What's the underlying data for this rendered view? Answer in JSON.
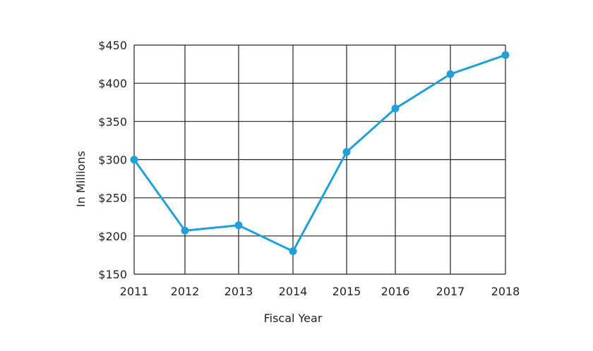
{
  "chart_data": {
    "type": "line",
    "title": "",
    "xlabel": "Fiscal Year",
    "ylabel": "In Millions",
    "x": [
      "2011",
      "2012",
      "2013",
      "2014",
      "2015",
      "2016",
      "2017",
      "2018"
    ],
    "series": [
      {
        "values": [
          300,
          207,
          214,
          180,
          310,
          367,
          412,
          437
        ],
        "color": "#1fa0d8"
      }
    ],
    "ylim": [
      150,
      450
    ],
    "yticks": [
      150,
      200,
      250,
      300,
      350,
      400,
      450
    ],
    "ytick_labels": [
      "$150",
      "$200",
      "$250",
      "$300",
      "$350",
      "$400",
      "$450"
    ],
    "grid": true,
    "legend": "none"
  }
}
